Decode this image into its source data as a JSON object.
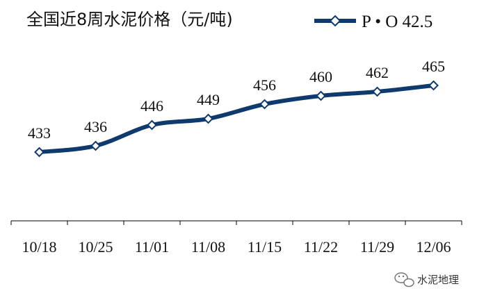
{
  "chart_data": {
    "type": "line",
    "title": "全国近8周水泥价格（元/吨)",
    "xlabel": "",
    "ylabel": "",
    "ylim": [
      400,
      480
    ],
    "grid": false,
    "legend_position": "top-right",
    "categories": [
      "10/18",
      "10/25",
      "11/01",
      "11/08",
      "11/15",
      "11/22",
      "11/29",
      "12/06"
    ],
    "series": [
      {
        "name": "P • O 42.5",
        "values": [
          433,
          436,
          446,
          449,
          456,
          460,
          462,
          465
        ],
        "color": "#0f3a6e"
      }
    ]
  },
  "watermark": {
    "text": "水泥地理",
    "icon": "wechat-icon"
  }
}
